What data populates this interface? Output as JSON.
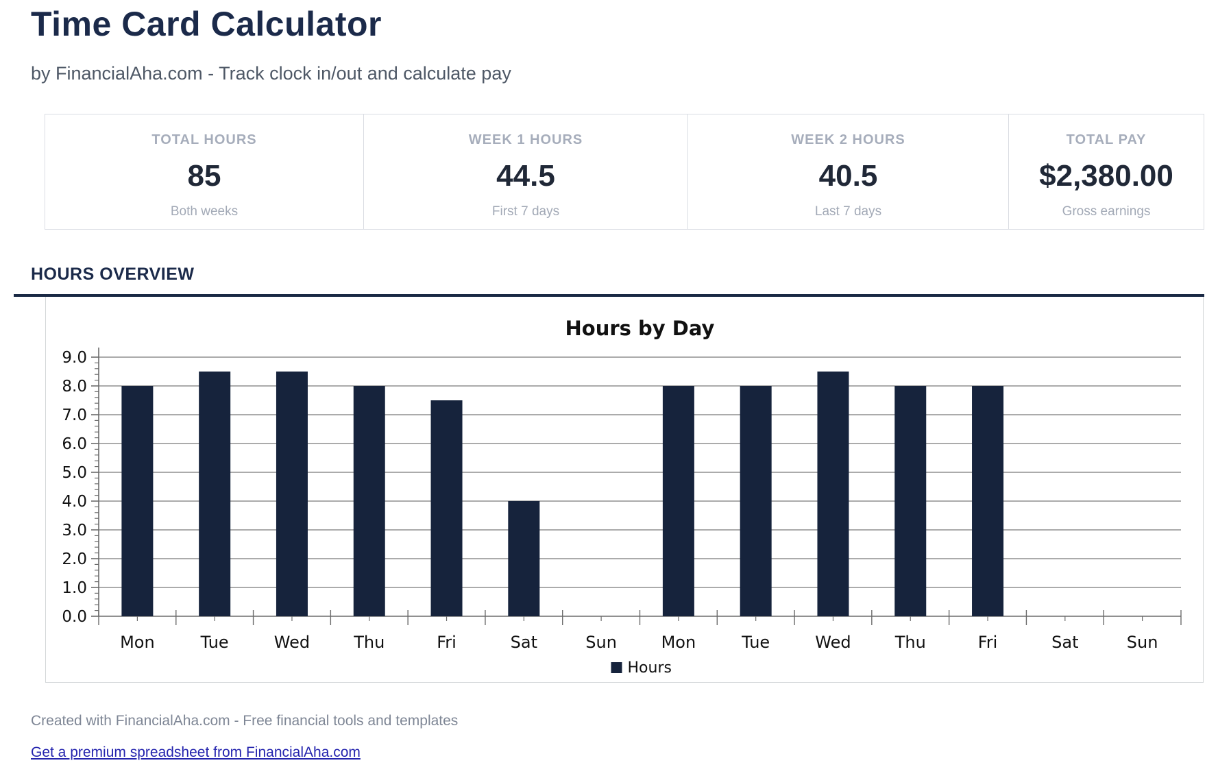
{
  "header": {
    "title": "Time Card Calculator",
    "subtitle": "by FinancialAha.com - Track clock in/out and calculate pay"
  },
  "stats": {
    "cards": [
      {
        "label": "TOTAL HOURS",
        "value": "85",
        "sub": "Both weeks"
      },
      {
        "label": "WEEK 1 HOURS",
        "value": "44.5",
        "sub": "First 7 days"
      },
      {
        "label": "WEEK 2 HOURS",
        "value": "40.5",
        "sub": "Last 7 days"
      },
      {
        "label": "TOTAL PAY",
        "value": "$2,380.00",
        "sub": "Gross earnings"
      }
    ]
  },
  "sections": {
    "hours_overview": "HOURS OVERVIEW"
  },
  "chart_data": {
    "type": "bar",
    "title": "Hours by Day",
    "categories": [
      "Mon",
      "Tue",
      "Wed",
      "Thu",
      "Fri",
      "Sat",
      "Sun",
      "Mon",
      "Tue",
      "Wed",
      "Thu",
      "Fri",
      "Sat",
      "Sun"
    ],
    "values": [
      8,
      8.5,
      8.5,
      8,
      7.5,
      4,
      0,
      8,
      8,
      8.5,
      8,
      8,
      0,
      0
    ],
    "series_name": "Hours",
    "xlabel": "",
    "ylabel": "",
    "ylim": [
      0,
      9
    ],
    "ytick_step": 1,
    "ytick_decimals": 1,
    "grid": true,
    "legend_position": "bottom"
  },
  "colors": {
    "bar": "#16233c",
    "grid": "#8f8f8f",
    "axis": "#6b6b6b",
    "chart_text": "#111111",
    "accent_navy": "#1a2944",
    "link_blue": "#2424ae"
  },
  "footer": {
    "note": "Created with FinancialAha.com - Free financial tools and templates",
    "link_label": "Get a premium spreadsheet from FinancialAha.com"
  }
}
